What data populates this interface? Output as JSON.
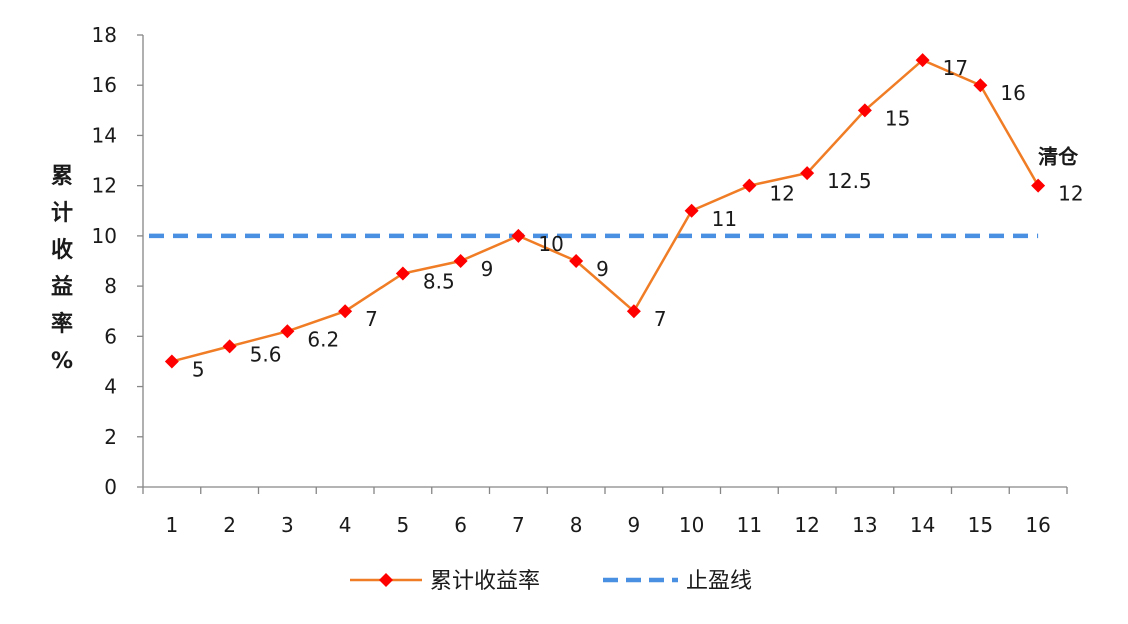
{
  "chart_data": {
    "type": "line",
    "title": "",
    "xlabel": "",
    "ylabel": "累计收益率%",
    "ylim": [
      0,
      18
    ],
    "yticks": [
      "0",
      "2",
      "4",
      "6",
      "8",
      "10",
      "12",
      "14",
      "16",
      "18"
    ],
    "categories": [
      "1",
      "2",
      "3",
      "4",
      "5",
      "6",
      "7",
      "8",
      "9",
      "10",
      "11",
      "12",
      "13",
      "14",
      "15",
      "16"
    ],
    "series": [
      {
        "name": "累计收益率",
        "color": "#f07d26",
        "marker_color": "#ff0000",
        "values": [
          5,
          5.6,
          6.2,
          7,
          8.5,
          9,
          10,
          9,
          7,
          11,
          12,
          12.5,
          15,
          17,
          16,
          12
        ],
        "labels": [
          "5",
          "5.6",
          "6.2",
          "7",
          "8.5",
          "9",
          "10",
          "9",
          "7",
          "11",
          "12",
          "12.5",
          "15",
          "17",
          "16",
          "12"
        ]
      },
      {
        "name": "止盈线",
        "color": "#4a90e2",
        "style": "dashed",
        "value": 10
      }
    ],
    "annotation": {
      "text": "清仓",
      "category": "16"
    },
    "legend_position": "bottom",
    "grid": false
  }
}
